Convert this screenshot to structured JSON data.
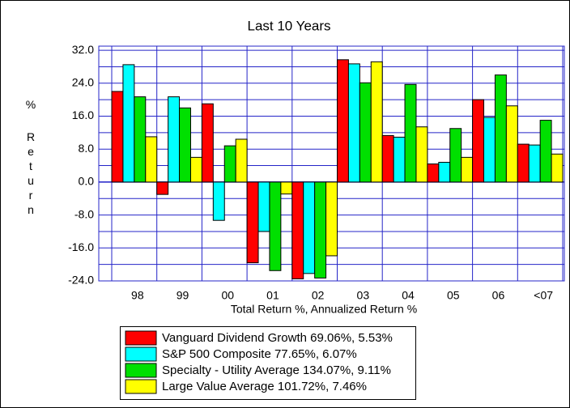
{
  "chart_data": {
    "type": "bar",
    "title": "Last 10 Years",
    "x_label": "Total Return %, Annualized Return %",
    "y_label": "% Return",
    "categories": [
      "98",
      "99",
      "00",
      "01",
      "02",
      "03",
      "04",
      "05",
      "06",
      "<07"
    ],
    "series": [
      {
        "name": "Vanguard Dividend Growth 69.06%, 5.53%",
        "color": "#ff0000",
        "values": [
          22,
          -3,
          19,
          -19.6,
          -23.5,
          29.7,
          11.3,
          4.4,
          20,
          9.2
        ]
      },
      {
        "name": "S&P 500 Composite 77.65%, 6.07%",
        "color": "#00ffff",
        "values": [
          28.5,
          20.7,
          -9.3,
          -12,
          -22.2,
          28.7,
          10.9,
          4.8,
          15.7,
          9
        ]
      },
      {
        "name": "Specialty - Utility Average 134.07%, 9.11%",
        "color": "#00e000",
        "values": [
          20.7,
          18,
          8.8,
          -21.5,
          -23.3,
          24.1,
          23.7,
          13,
          26,
          15
        ]
      },
      {
        "name": "Large Value Average 101.72%, 7.46%",
        "color": "#ffff00",
        "values": [
          11,
          6,
          10.4,
          -2.9,
          -17.9,
          29.2,
          13.4,
          6,
          18.5,
          6.8
        ]
      }
    ],
    "ylim": [
      -24,
      33
    ],
    "yticks": [
      {
        "value": -24,
        "label": "-24.0"
      },
      {
        "value": -16,
        "label": "-16.0"
      },
      {
        "value": -8,
        "label": "-8.0"
      },
      {
        "value": 0,
        "label": "0.0"
      },
      {
        "value": 8,
        "label": "8.0"
      },
      {
        "value": 16,
        "label": "16.0"
      },
      {
        "value": 24,
        "label": "24.0"
      },
      {
        "value": 32,
        "label": "32.0"
      }
    ],
    "grid": true
  }
}
